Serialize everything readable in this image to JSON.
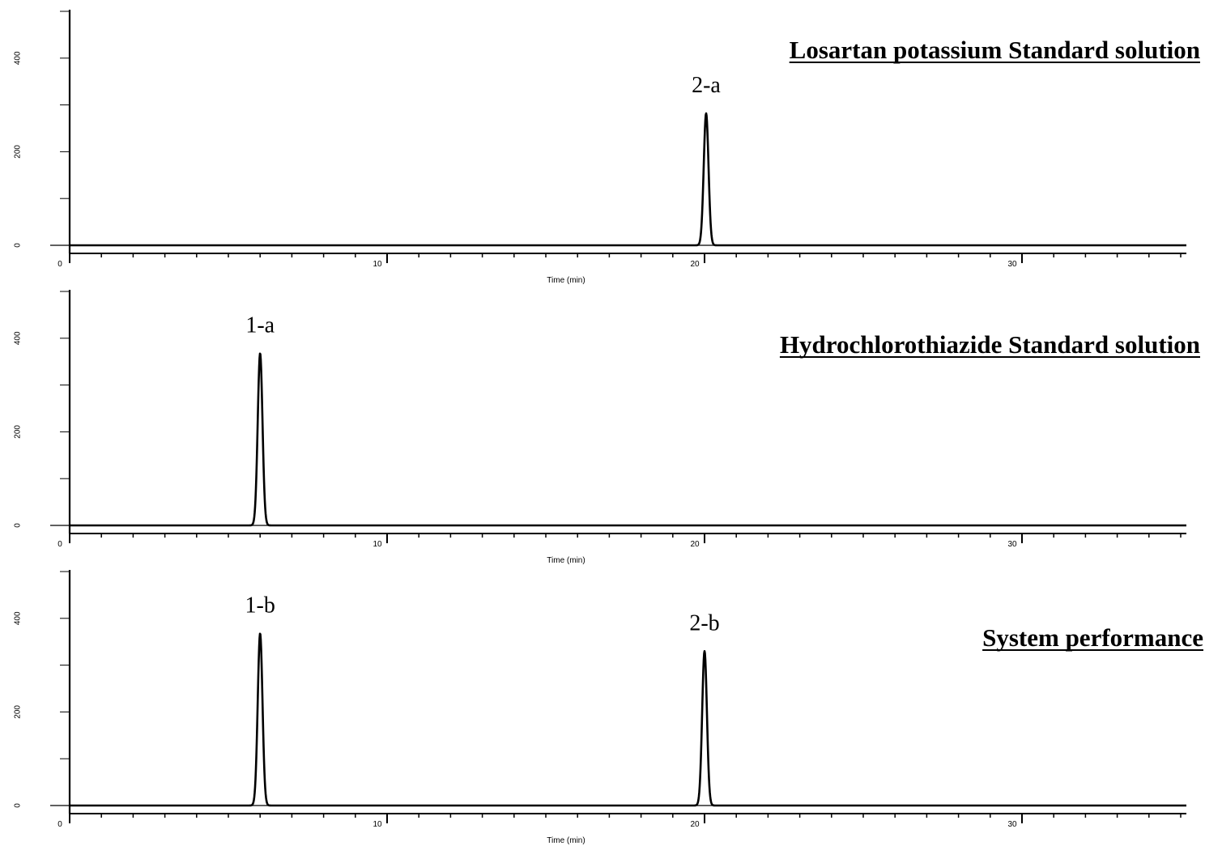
{
  "chart_data": [
    {
      "type": "line",
      "title": "Losartan potassium Standard solution",
      "xlabel": "Time (min)",
      "ylabel": "",
      "xlim": [
        0,
        35
      ],
      "ylim": [
        0,
        500
      ],
      "x_ticks": [
        "0",
        "10",
        "20",
        "30"
      ],
      "y_ticks": [
        "0",
        "200",
        "400"
      ],
      "grid": false,
      "peaks": [
        {
          "label": "2-a",
          "x": 20.05,
          "y": 282
        }
      ]
    },
    {
      "type": "line",
      "title": "Hydrochlorothiazide Standard solution",
      "xlabel": "Time (min)",
      "ylabel": "",
      "xlim": [
        0,
        35
      ],
      "ylim": [
        0,
        500
      ],
      "x_ticks": [
        "0",
        "10",
        "20",
        "30"
      ],
      "y_ticks": [
        "0",
        "200",
        "400"
      ],
      "grid": false,
      "peaks": [
        {
          "label": "1-a",
          "x": 6.0,
          "y": 368
        }
      ]
    },
    {
      "type": "line",
      "title": "System performance",
      "xlabel": "Time (min)",
      "ylabel": "",
      "xlim": [
        0,
        35
      ],
      "ylim": [
        0,
        500
      ],
      "x_ticks": [
        "0",
        "10",
        "20",
        "30"
      ],
      "y_ticks": [
        "0",
        "200",
        "400"
      ],
      "grid": false,
      "peaks": [
        {
          "label": "1-b",
          "x": 6.0,
          "y": 368
        },
        {
          "label": "2-b",
          "x": 20.0,
          "y": 330
        }
      ]
    }
  ]
}
